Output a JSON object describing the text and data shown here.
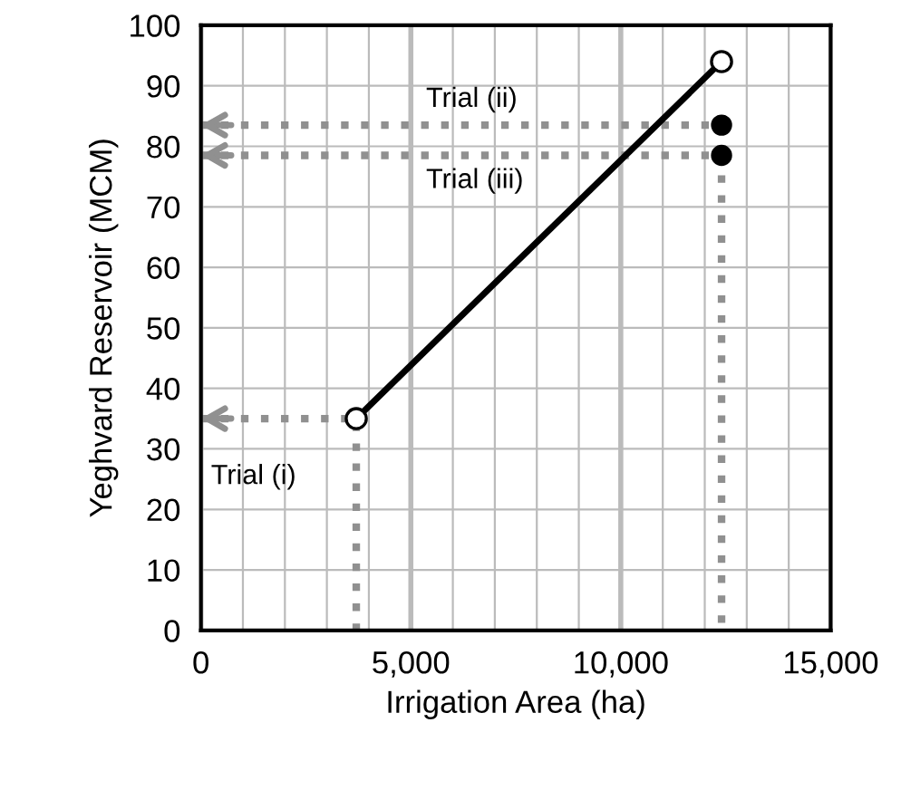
{
  "chart_data": {
    "type": "line",
    "xlabel": "Irrigation Area (ha)",
    "ylabel": "Yeghvard Reservoir (MCM)",
    "xlim": [
      0,
      15000
    ],
    "ylim": [
      0,
      100
    ],
    "xticks": [
      0,
      {
        "value": 5000,
        "label": "5,000"
      },
      {
        "value": 10000,
        "label": "10,000"
      },
      {
        "value": 15000,
        "label": "15,000"
      }
    ],
    "yticks": [
      0,
      10,
      20,
      30,
      40,
      50,
      60,
      70,
      80,
      90,
      100
    ],
    "grid": true,
    "series": [
      {
        "color": "#000000",
        "x": [
          3700,
          12400
        ],
        "values": [
          35,
          94
        ],
        "marker": "circle",
        "line_style": "solid"
      },
      {
        "type": "scatter",
        "color": "#000000",
        "x": [
          12400,
          12400
        ],
        "values": [
          83.5,
          78.5
        ],
        "marker": "circle"
      },
      {
        "type": "line",
        "color": "#909090",
        "x": [
          0,
          3700,
          3700
        ],
        "values": [
          35,
          35,
          0
        ],
        "marker": "none",
        "line_style": "dotted"
      },
      {
        "type": "line",
        "color": "#909090",
        "x": [
          0,
          12400
        ],
        "values": [
          83.5,
          83.5
        ],
        "marker": "none",
        "line_style": "dotted"
      },
      {
        "type": "line",
        "color": "#909090",
        "x": [
          0,
          12400,
          12400
        ],
        "values": [
          78.5,
          78.5,
          0
        ],
        "marker": "none",
        "line_style": "dotted"
      }
    ],
    "annotations": [
      "Trial (i)",
      "Trial (ii)",
      "Trial (iii)"
    ]
  }
}
